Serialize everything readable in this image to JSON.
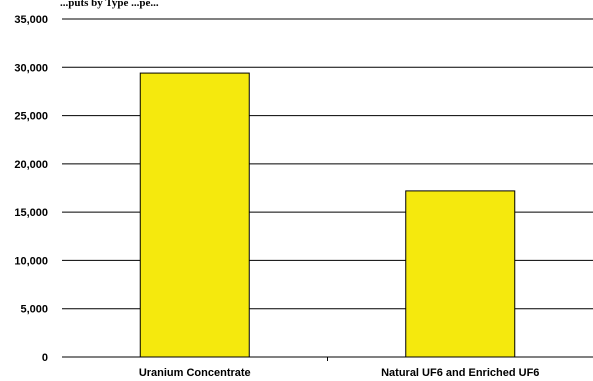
{
  "chart_data": {
    "type": "bar",
    "title": "...puts by Type ...pe...",
    "categories": [
      "Uranium Concentrate",
      "Natural UF6 and Enriched UF6"
    ],
    "values": [
      29400,
      17200
    ],
    "ylim": [
      0,
      35000
    ],
    "yticks": [
      0,
      5000,
      10000,
      15000,
      20000,
      25000,
      30000,
      35000
    ],
    "ytick_labels": [
      "0",
      "5,000",
      "10,000",
      "15,000",
      "20,000",
      "25,000",
      "30,000",
      "35,000"
    ],
    "xlabel": "",
    "ylabel": "",
    "grid": true,
    "bar_color": "#f5e90d",
    "bar_edge_color": "#000000"
  }
}
